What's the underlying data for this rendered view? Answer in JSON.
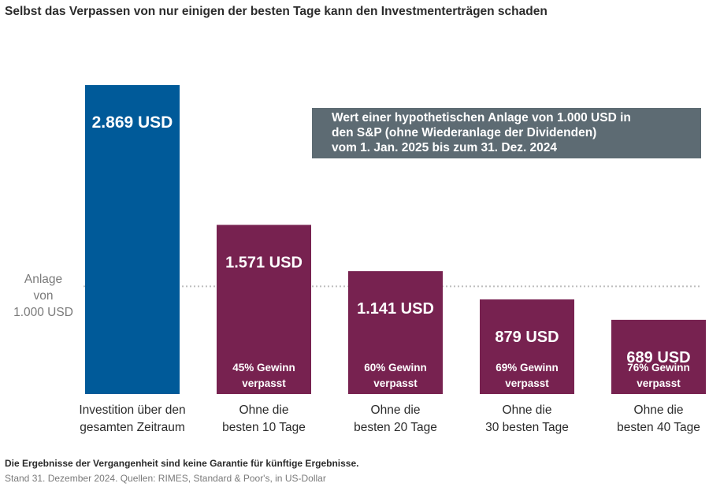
{
  "title": "Selbst das Verpassen von nur einigen der besten Tage kann den Investmenterträgen schaden",
  "info_box": {
    "lines": [
      "Wert einer hypothetischen Anlage von 1.000 USD in",
      "den S&P (ohne Wiederanlage der Dividenden)",
      "vom 1. Jan. 2025 bis zum 31. Dez. 2024"
    ]
  },
  "baseline": {
    "value": 1000,
    "label_lines": [
      "Anlage",
      "von",
      "1.000 USD"
    ]
  },
  "chart_data": {
    "type": "bar",
    "ylim": [
      0,
      3000
    ],
    "grid": false,
    "colors": {
      "full_period": "#005a99",
      "missed_days": "#772250",
      "baseline_line": "#bdbdbd"
    },
    "bars": [
      {
        "value": 2869,
        "value_label": "2.869 USD",
        "gain_lines": [],
        "category_lines": [
          "Investition über den",
          "gesamten Zeitraum"
        ],
        "color": "#005a99"
      },
      {
        "value": 1571,
        "value_label": "1.571 USD",
        "gain_lines": [
          "45% Gewinn",
          "verpasst"
        ],
        "category_lines": [
          "Ohne die",
          "besten 10 Tage"
        ],
        "color": "#772250"
      },
      {
        "value": 1141,
        "value_label": "1.141 USD",
        "gain_lines": [
          "60% Gewinn",
          "verpasst"
        ],
        "category_lines": [
          "Ohne die",
          "besten 20 Tage"
        ],
        "color": "#772250"
      },
      {
        "value": 879,
        "value_label": "879 USD",
        "gain_lines": [
          "69% Gewinn",
          "verpasst"
        ],
        "category_lines": [
          "Ohne die",
          "30 besten Tage"
        ],
        "color": "#772250"
      },
      {
        "value": 689,
        "value_label": "689 USD",
        "gain_lines": [
          "76% Gewinn",
          "verpasst"
        ],
        "category_lines": [
          "Ohne die",
          "besten 40 Tage"
        ],
        "color": "#772250"
      }
    ]
  },
  "footnote": "Die Ergebnisse der Vergangenheit sind keine Garantie für künftige Ergebnisse.",
  "source": "Stand 31. Dezember 2024. Quellen: RIMES, Standard & Poor's, in US-Dollar"
}
